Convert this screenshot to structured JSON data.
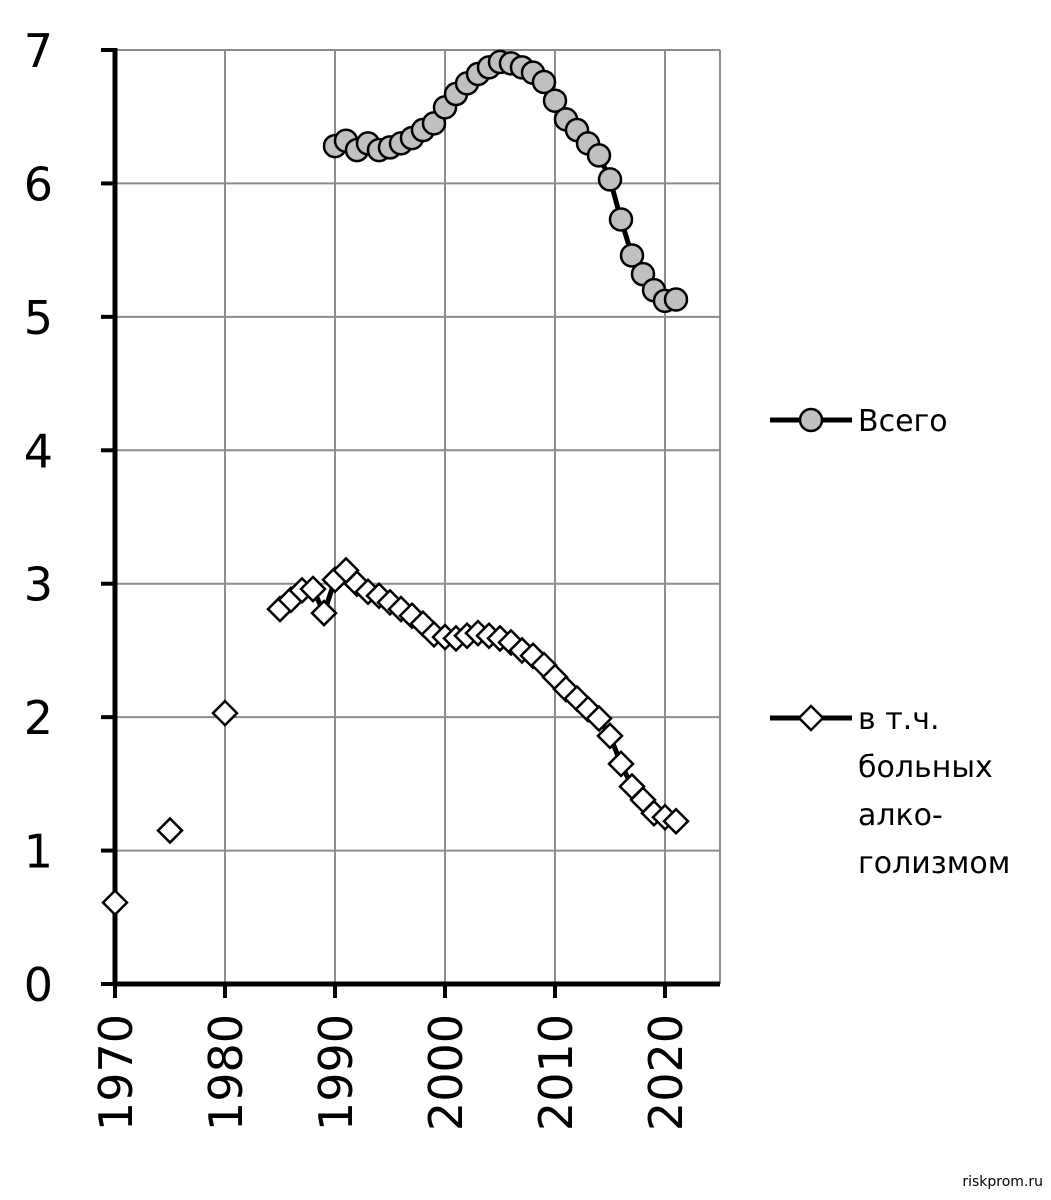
{
  "chart_data": {
    "type": "line",
    "xlim": [
      1970,
      2025
    ],
    "ylim": [
      0,
      7
    ],
    "yticks": [
      0,
      1,
      2,
      3,
      4,
      5,
      6,
      7
    ],
    "xticks": [
      1970,
      1980,
      1990,
      2000,
      2010,
      2020
    ],
    "ytick_labels": [
      "0",
      "1",
      "2",
      "3",
      "4",
      "5",
      "6",
      "7"
    ],
    "xtick_labels": [
      "1970",
      "1980",
      "1990",
      "2000",
      "2010",
      "2020"
    ],
    "grid": true,
    "legend_position": "right",
    "series": [
      {
        "name": "Всего",
        "marker": "circle",
        "color": "#c0c0c0",
        "x": [
          1990,
          1991,
          1992,
          1993,
          1994,
          1995,
          1996,
          1997,
          1998,
          1999,
          2000,
          2001,
          2002,
          2003,
          2004,
          2005,
          2006,
          2007,
          2008,
          2009,
          2010,
          2011,
          2012,
          2013,
          2014,
          2015,
          2016,
          2017,
          2018,
          2019,
          2020,
          2021
        ],
        "y": [
          6.28,
          6.32,
          6.25,
          6.3,
          6.25,
          6.27,
          6.3,
          6.34,
          6.4,
          6.45,
          6.57,
          6.67,
          6.75,
          6.82,
          6.87,
          6.91,
          6.9,
          6.87,
          6.83,
          6.76,
          6.62,
          6.48,
          6.4,
          6.3,
          6.21,
          6.03,
          5.73,
          5.46,
          5.32,
          5.2,
          5.12,
          5.13
        ]
      },
      {
        "name": "в т.ч. больных алко-голизмом",
        "legend_lines": [
          "в т.ч.",
          "больных",
          "алко-",
          "голизмом"
        ],
        "marker": "diamond",
        "color": "#ffffff",
        "x": [
          1970,
          1975,
          1980,
          1985,
          1986,
          1987,
          1988,
          1989,
          1990,
          1991,
          1992,
          1993,
          1994,
          1995,
          1996,
          1997,
          1998,
          1999,
          2000,
          2001,
          2002,
          2003,
          2004,
          2005,
          2006,
          2007,
          2008,
          2009,
          2010,
          2011,
          2012,
          2013,
          2014,
          2015,
          2016,
          2017,
          2018,
          2019,
          2020,
          2021
        ],
        "y": [
          0.61,
          1.15,
          2.03,
          2.81,
          2.88,
          2.95,
          2.96,
          2.78,
          3.03,
          3.1,
          3.0,
          2.94,
          2.91,
          2.86,
          2.81,
          2.76,
          2.7,
          2.62,
          2.6,
          2.59,
          2.61,
          2.63,
          2.61,
          2.59,
          2.56,
          2.5,
          2.46,
          2.39,
          2.3,
          2.21,
          2.14,
          2.06,
          1.99,
          1.86,
          1.65,
          1.48,
          1.38,
          1.28,
          1.25,
          1.22
        ],
        "connected_from": 1985
      }
    ]
  },
  "watermark": "riskprom.ru"
}
